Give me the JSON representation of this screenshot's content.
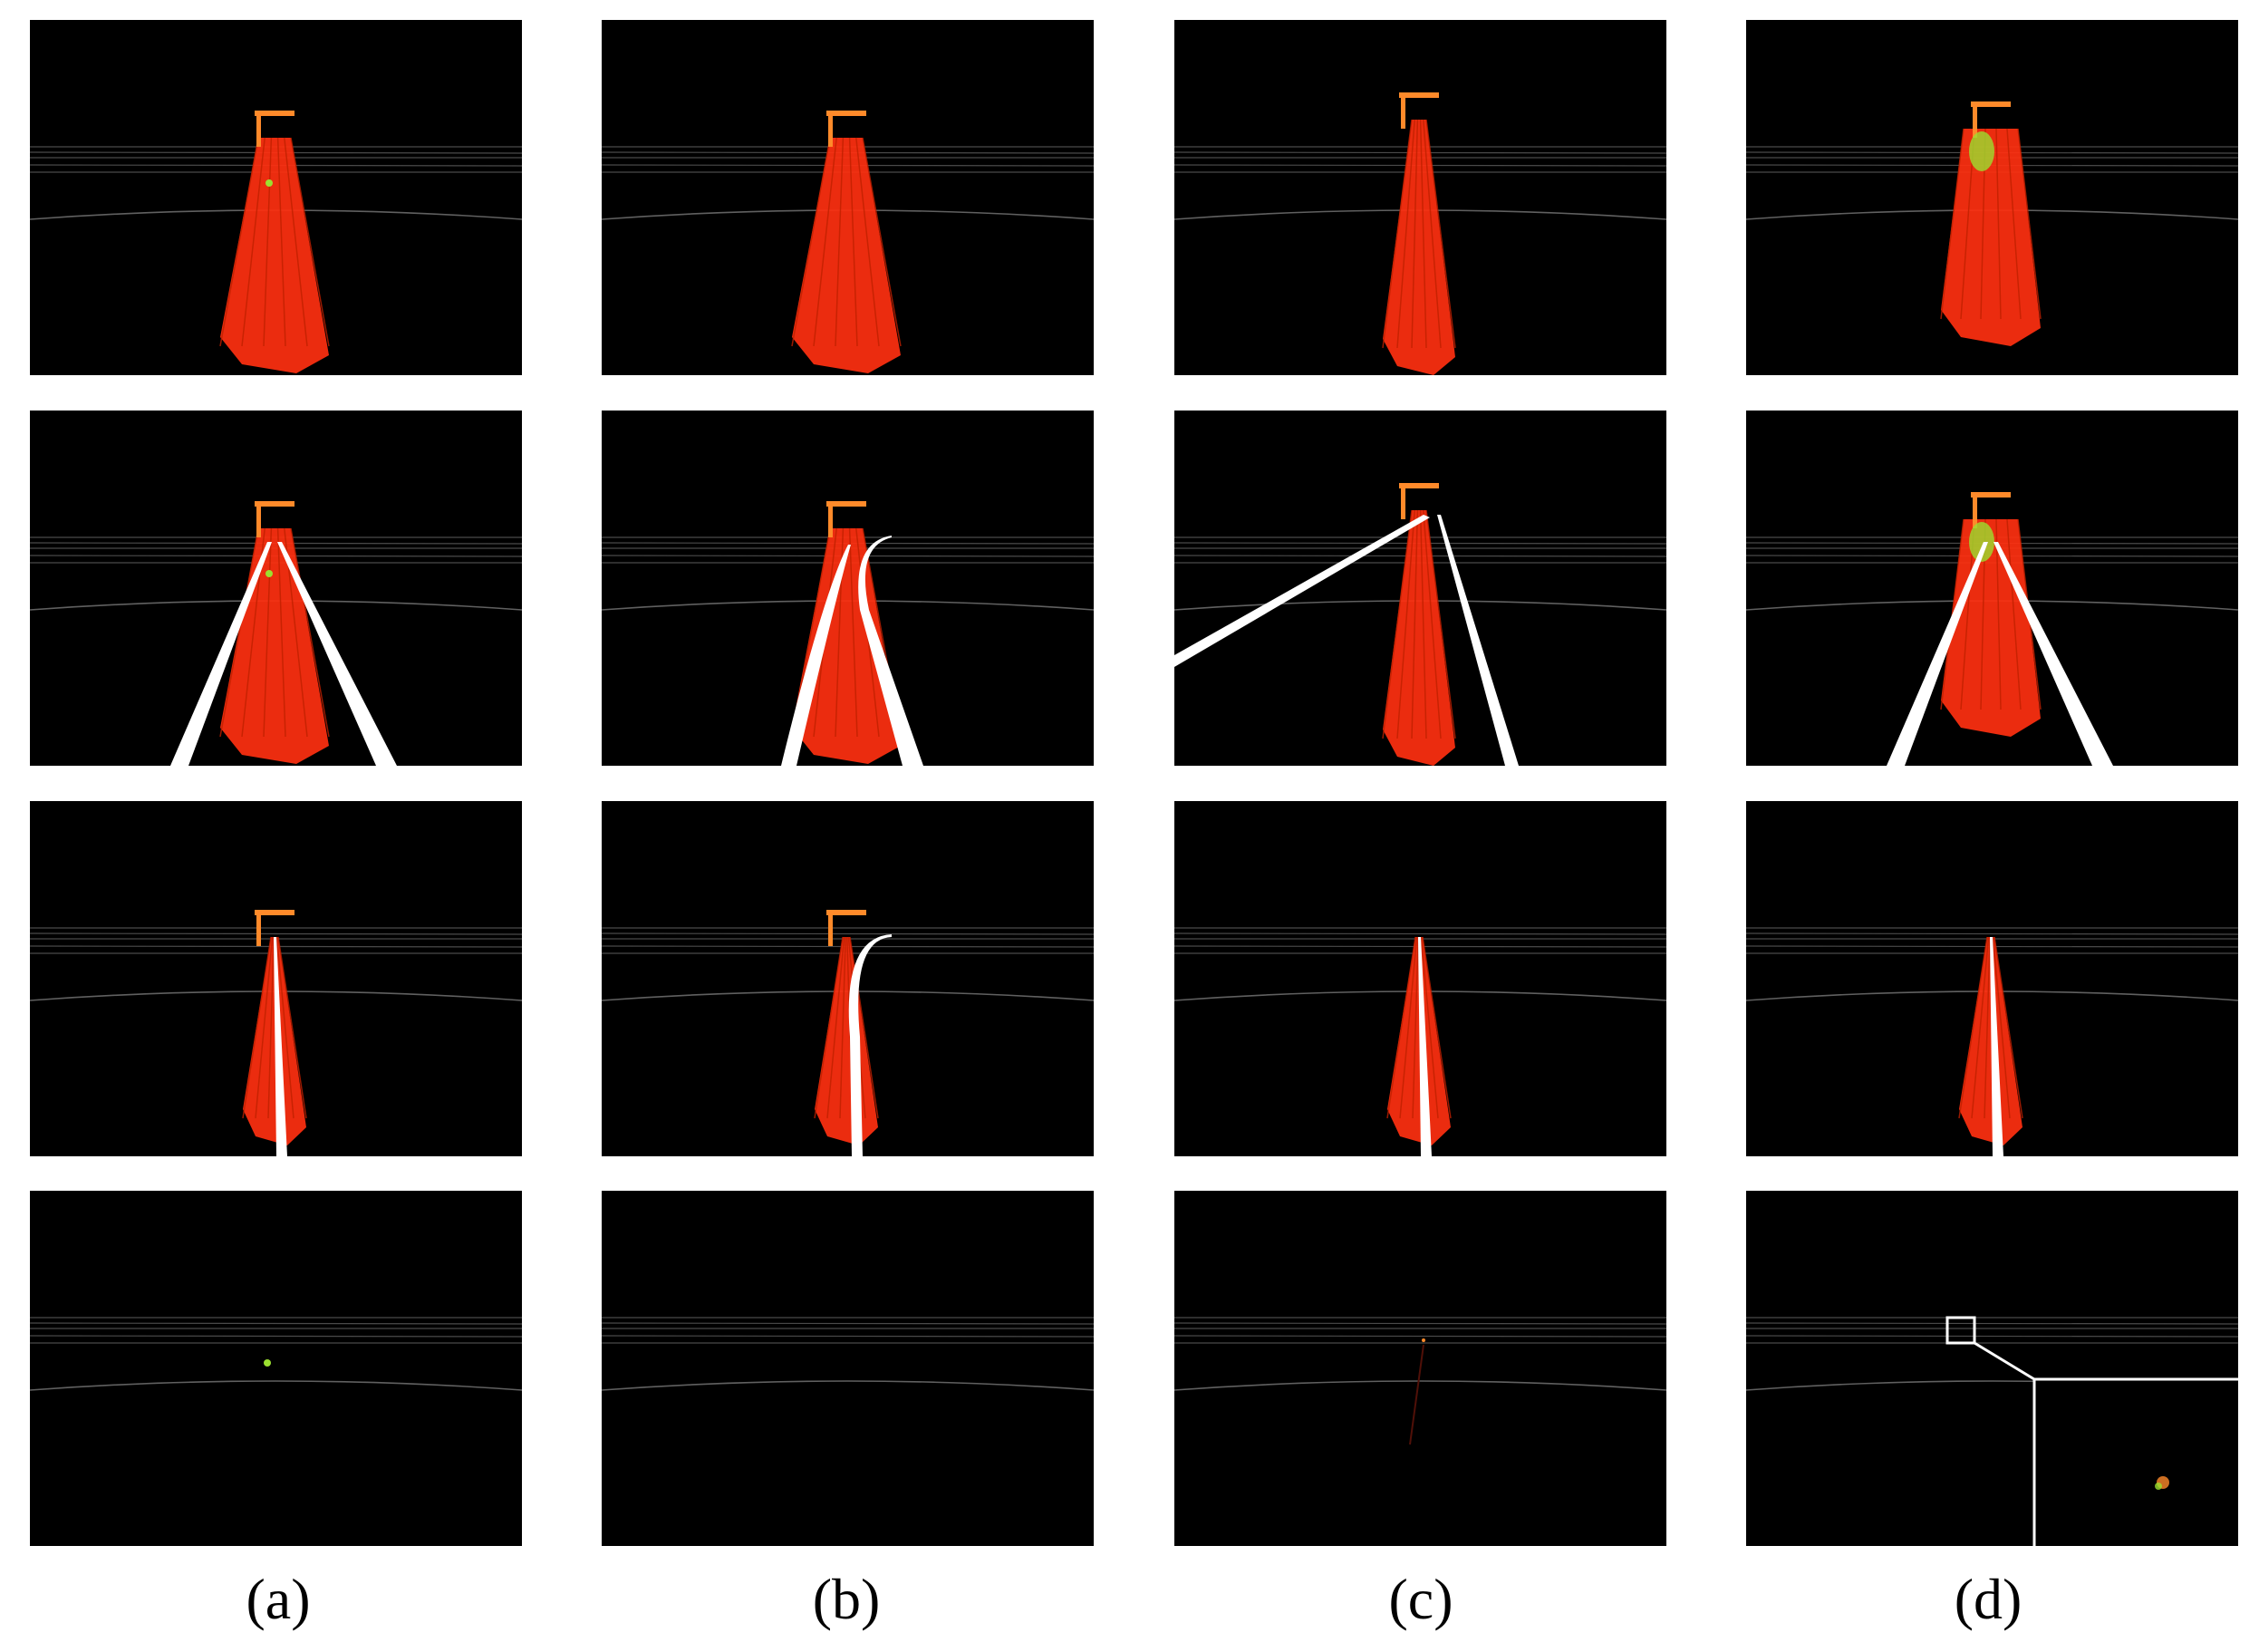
{
  "figure": {
    "captions": [
      "(a)",
      "(b)",
      "(c)",
      "(d)"
    ],
    "columns": [
      "a",
      "b",
      "c",
      "d"
    ],
    "rows": 4
  },
  "colors": {
    "background": "#ffffff",
    "panel_background": "#000000",
    "point_cloud": "#ff3010",
    "point_cloud_dark": "#c02000",
    "structure": "#ff8a2a",
    "highlight": "#9be030",
    "track_line": "#ffffff",
    "scan_lines": "#6a6a6a"
  },
  "panels": [
    {
      "id": "r1-a",
      "row": 1,
      "col": "a",
      "content": "point-cloud",
      "track": "none"
    },
    {
      "id": "r1-b",
      "row": 1,
      "col": "b",
      "content": "point-cloud",
      "track": "none"
    },
    {
      "id": "r1-c",
      "row": 1,
      "col": "c",
      "content": "point-cloud",
      "track": "none"
    },
    {
      "id": "r1-d",
      "row": 1,
      "col": "d",
      "content": "point-cloud",
      "track": "none"
    },
    {
      "id": "r2-a",
      "row": 2,
      "col": "a",
      "content": "point-cloud",
      "track": "two-rails"
    },
    {
      "id": "r2-b",
      "row": 2,
      "col": "b",
      "content": "point-cloud",
      "track": "two-rails-curved"
    },
    {
      "id": "r2-c",
      "row": 2,
      "col": "c",
      "content": "point-cloud",
      "track": "two-rails-diverging"
    },
    {
      "id": "r2-d",
      "row": 2,
      "col": "d",
      "content": "point-cloud",
      "track": "two-rails"
    },
    {
      "id": "r3-a",
      "row": 3,
      "col": "a",
      "content": "point-cloud",
      "track": "single-line"
    },
    {
      "id": "r3-b",
      "row": 3,
      "col": "b",
      "content": "point-cloud",
      "track": "single-line-curved"
    },
    {
      "id": "r3-c",
      "row": 3,
      "col": "c",
      "content": "point-cloud",
      "track": "single-line"
    },
    {
      "id": "r3-d",
      "row": 3,
      "col": "d",
      "content": "point-cloud",
      "track": "single-line"
    },
    {
      "id": "r4-a",
      "row": 4,
      "col": "a",
      "content": "sparse",
      "track": "none"
    },
    {
      "id": "r4-b",
      "row": 4,
      "col": "b",
      "content": "empty",
      "track": "none"
    },
    {
      "id": "r4-c",
      "row": 4,
      "col": "c",
      "content": "sparse",
      "track": "none"
    },
    {
      "id": "r4-d",
      "row": 4,
      "col": "d",
      "content": "sparse-with-zoom-inset",
      "track": "none"
    }
  ]
}
